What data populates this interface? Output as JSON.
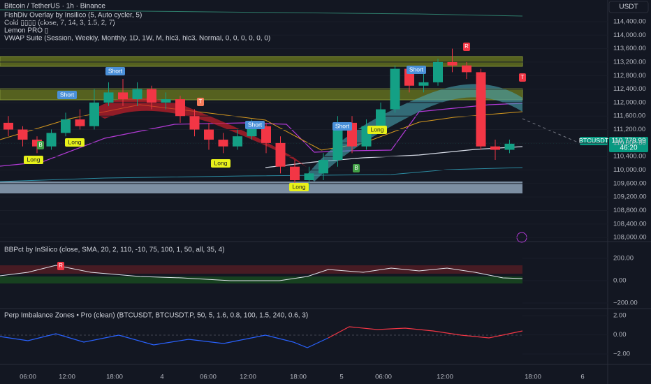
{
  "header": {
    "title": "Bitcoin / TetherUS · 1h · Binance",
    "indicators": [
      "FishDiv Overlay by Insilico (5, Auto cycler, 5)",
      "Cold ▯▯▯▯ (close, 7, 14, 3, 1.5, 2, 7)",
      "Lemon PRO ▯",
      "VWAP Suite (Session, Weekly, Monthly, 1D, 1W, M, hlc3, hlc3, Normal, 0, 0, 0, 0, 0, 0)"
    ]
  },
  "currency": "USDT",
  "price_tag": {
    "symbol": "BTCUSDT",
    "price": "110,779.99",
    "countdown": "46:20"
  },
  "signals": [
    "Short",
    "Short",
    "Short",
    "Short",
    "Short",
    "Long",
    "Long",
    "Long",
    "Long",
    "Long"
  ],
  "markers": [
    "B",
    "B",
    "R",
    "R",
    "T",
    "T"
  ],
  "chart_data": {
    "type": "candlestick",
    "open": [
      111400,
      111200,
      110900,
      110700,
      111100,
      111500,
      111300,
      112000,
      112300,
      112100,
      112400,
      112000,
      112100,
      111600,
      111200,
      110900,
      110700,
      111000,
      111300,
      110800,
      110100,
      109700,
      109900,
      110300,
      111400,
      110700,
      111300,
      111800,
      113000,
      112500,
      112600,
      113200,
      113100,
      112900,
      110700,
      110600
    ],
    "high": [
      111600,
      111300,
      111000,
      111200,
      111700,
      111800,
      112400,
      112600,
      112700,
      112600,
      112500,
      112300,
      112200,
      111800,
      111400,
      111100,
      111200,
      111500,
      111400,
      111000,
      110300,
      110100,
      110500,
      111600,
      111600,
      111500,
      112000,
      113100,
      113100,
      112900,
      113300,
      113600,
      113200,
      113000,
      110900,
      110900
    ],
    "low": [
      111000,
      110700,
      110500,
      110600,
      111000,
      111200,
      111200,
      111900,
      111900,
      111900,
      111800,
      111800,
      111400,
      111000,
      110600,
      110500,
      110600,
      110900,
      110500,
      109900,
      109500,
      109400,
      109700,
      110100,
      110500,
      110600,
      111200,
      111700,
      112300,
      112300,
      112500,
      112900,
      112700,
      110600,
      110300,
      110500
    ],
    "close": [
      111200,
      110900,
      110700,
      111100,
      111500,
      111300,
      112000,
      112300,
      112100,
      112400,
      112000,
      112100,
      111600,
      111200,
      110900,
      110700,
      111000,
      111300,
      110800,
      110100,
      109700,
      109900,
      110300,
      111400,
      110700,
      111300,
      111800,
      113000,
      112500,
      112600,
      113200,
      113100,
      112900,
      110700,
      110600,
      110780
    ],
    "ylim": [
      107900,
      115040
    ],
    "yticks": [
      {
        "value": 114400,
        "label": "114,400.00"
      },
      {
        "value": 114000,
        "label": "114,000.00"
      },
      {
        "value": 113600,
        "label": "113,600.00"
      },
      {
        "value": 113200,
        "label": "113,200.00"
      },
      {
        "value": 112800,
        "label": "112,800.00"
      },
      {
        "value": 112400,
        "label": "112,400.00"
      },
      {
        "value": 112000,
        "label": "112,000.00"
      },
      {
        "value": 111600,
        "label": "111,600.00"
      },
      {
        "value": 111200,
        "label": "111,200.00"
      },
      {
        "value": 110800,
        "label": "110,800.00"
      },
      {
        "value": 110400,
        "label": "110,400.00"
      },
      {
        "value": 110000,
        "label": "110,000.00"
      },
      {
        "value": 109600,
        "label": "109,600.00"
      },
      {
        "value": 109200,
        "label": "109,200.00"
      },
      {
        "value": 108800,
        "label": "108,800.00"
      },
      {
        "value": 108400,
        "label": "108,400.00"
      },
      {
        "value": 108000,
        "label": "108,000.00"
      }
    ],
    "up_color": "#14a085",
    "down_color": "#f23645"
  },
  "bbpct": {
    "title": "BBPct by InSilico (close, SMA, 20, 2, 110, -10, 75, 100, 1, 50, all, 35, 4)",
    "ylim": [
      -250,
      337
    ],
    "yticks": [
      {
        "value": 200,
        "label": "200.00"
      },
      {
        "value": 0,
        "label": "0.00"
      },
      {
        "value": -200,
        "label": "−200.00"
      }
    ]
  },
  "perp": {
    "title": "Perp Imbalance Zones • Pro (clean) (BTCUSDT, BTCUSDT.P, 50, 5, 1.6, 0.8, 100, 1.5, 240, 0.6, 3)",
    "ylim": [
      -3.1,
      2.6
    ],
    "yticks": [
      {
        "value": 2,
        "label": "2.00"
      },
      {
        "value": 0,
        "label": "0.00"
      },
      {
        "value": -2,
        "label": "−2.00"
      }
    ]
  },
  "time_axis": [
    "06:00",
    "12:00",
    "18:00",
    "4",
    "06:00",
    "12:00",
    "18:00",
    "5",
    "06:00",
    "12:00",
    "18:00",
    "6"
  ]
}
